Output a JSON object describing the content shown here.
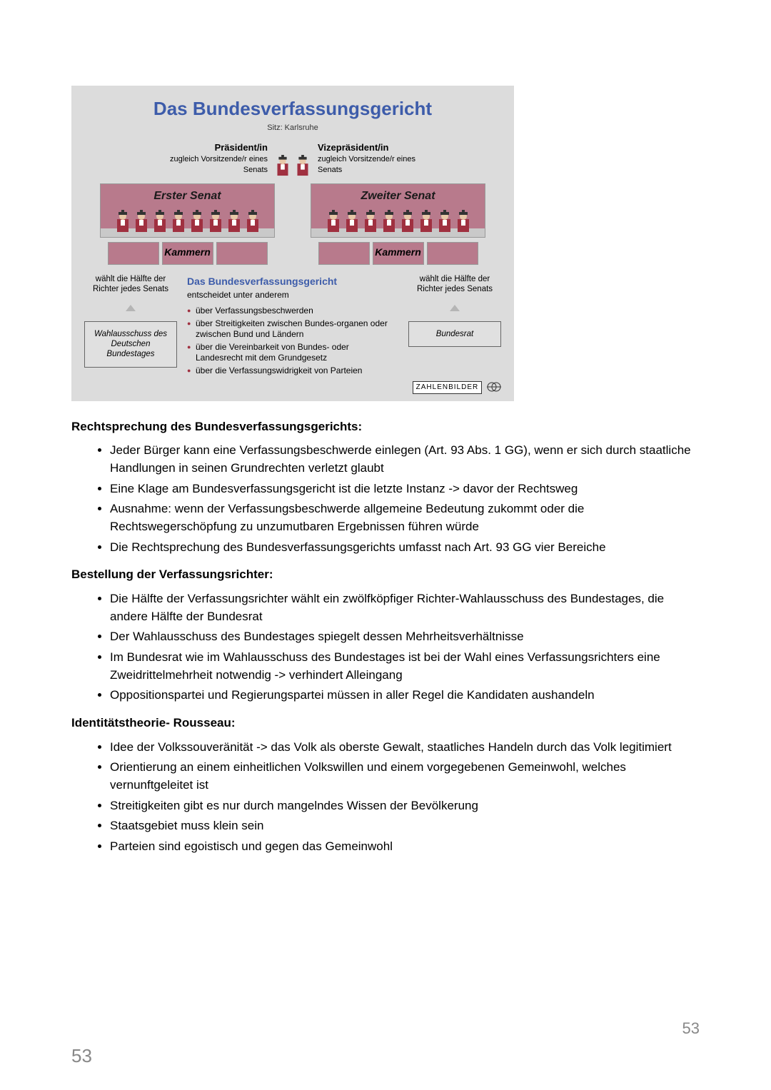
{
  "diagram": {
    "title": "Das Bundesverfassungsgericht",
    "subtitle": "Sitz: Karlsruhe",
    "president": {
      "title": "Präsident/in",
      "sub": "zugleich Vorsitzende/r eines Senats"
    },
    "vicepresident": {
      "title": "Vizepräsident/in",
      "sub": "zugleich Vorsitzende/r eines Senats"
    },
    "senate1": "Erster Senat",
    "senate2": "Zweiter Senat",
    "kammern": "Kammern",
    "leftText": "wählt die Hälfte der Richter jedes Senats",
    "leftBox": "Wahlausschuss des Deutschen Bundestages",
    "rightText": "wählt die Hälfte der Richter jedes Senats",
    "rightBox": "Bundesrat",
    "centerTitle": "Das Bundesverfassungsgericht",
    "centerSub": "entscheidet unter anderem",
    "centerBullets": [
      "über Verfassungsbeschwerden",
      "über Streitigkeiten zwischen Bundes-organen oder zwischen Bund und Ländern",
      "über die Vereinbarkeit von Bundes- oder Landesrecht mit dem Grundgesetz",
      "über die Verfassungswidrigkeit von Parteien"
    ],
    "attribution": "ZAHLENBILDER",
    "colors": {
      "title": "#3d5caa",
      "senateBg": "#b87a8c",
      "diagramBg": "#dcdcdc",
      "bulletColor": "#a03040",
      "judgeRobe": "#a03040"
    }
  },
  "sections": [
    {
      "heading": "Rechtsprechung des Bundesverfassungsgerichts:",
      "items": [
        "Jeder Bürger kann eine Verfassungsbeschwerde einlegen (Art. 93 Abs. 1 GG), wenn er sich durch staatliche Handlungen in seinen Grundrechten verletzt glaubt",
        "Eine Klage am Bundesverfassungsgericht ist die letzte Instanz -> davor der Rechtsweg",
        "Ausnahme: wenn der Verfassungsbeschwerde allgemeine Bedeutung zukommt oder die Rechtswegerschöpfung zu unzumutbaren Ergebnissen führen würde",
        "Die Rechtsprechung des Bundesverfassungsgerichts umfasst nach Art. 93 GG vier Bereiche"
      ]
    },
    {
      "heading": "Bestellung der Verfassungsrichter:",
      "items": [
        "Die Hälfte der Verfassungsrichter wählt ein zwölfköpfiger Richter-Wahlausschuss des Bundestages, die andere Hälfte der Bundesrat",
        "Der Wahlausschuss des Bundestages spiegelt dessen Mehrheitsverhältnisse",
        "Im Bundesrat wie im Wahlausschuss des Bundestages ist bei der Wahl eines Verfassungsrichters eine Zweidrittelmehrheit notwendig -> verhindert Alleingang",
        "Oppositionspartei und Regierungspartei müssen in aller Regel die Kandidaten aushandeln"
      ]
    },
    {
      "heading": "Identitätstheorie- Rousseau:",
      "items": [
        "Idee der Volkssouveränität -> das Volk als oberste Gewalt, staatliches Handeln durch das Volk legitimiert",
        "Orientierung an einem einheitlichen Volkswillen und einem vorgegebenen Gemeinwohl, welches vernunftgeleitet ist",
        "Streitigkeiten gibt es nur durch mangelndes Wissen der Bevölkerung",
        "Staatsgebiet muss klein sein",
        "Parteien sind egoistisch und gegen das Gemeinwohl"
      ]
    }
  ],
  "pageNumber": "53"
}
